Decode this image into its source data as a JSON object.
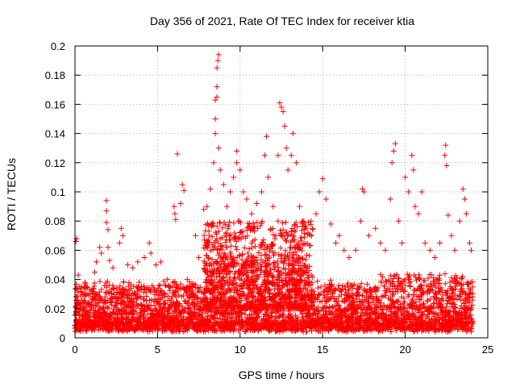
{
  "chart_data": {
    "type": "scatter",
    "title": "Day 356 of 2021, Rate Of TEC Index for receiver ktia",
    "xlabel": "GPS time / hours",
    "ylabel": "ROTI / TECUs",
    "xlim": [
      0,
      25
    ],
    "ylim": [
      0,
      0.2
    ],
    "x_ticks": [
      0,
      5,
      10,
      15,
      20,
      25
    ],
    "x_tick_labels": [
      "0",
      "5",
      "10",
      "15",
      "20",
      "25"
    ],
    "y_ticks": [
      0,
      0.02,
      0.04,
      0.06,
      0.08,
      0.1,
      0.12,
      0.14,
      0.16,
      0.18,
      0.2
    ],
    "y_tick_labels": [
      "0",
      "0.02",
      "0.04",
      "0.06",
      "0.08",
      "0.1",
      "0.12",
      "0.14",
      "0.16",
      "0.18",
      "0.2"
    ],
    "grid": true,
    "marker": "+",
    "marker_color": "#ff0000",
    "series": [
      {
        "name": "ROTI",
        "points": [
          [
            0.05,
            0.066
          ],
          [
            0.1,
            0.068
          ],
          [
            0.2,
            0.043
          ],
          [
            0.4,
            0.035
          ],
          [
            0.6,
            0.038
          ],
          [
            0.9,
            0.03
          ],
          [
            1.2,
            0.045
          ],
          [
            1.3,
            0.052
          ],
          [
            1.5,
            0.062
          ],
          [
            1.6,
            0.058
          ],
          [
            1.9,
            0.094
          ],
          [
            1.9,
            0.087
          ],
          [
            1.9,
            0.079
          ],
          [
            2.0,
            0.074
          ],
          [
            2.0,
            0.062
          ],
          [
            2.1,
            0.053
          ],
          [
            2.3,
            0.048
          ],
          [
            2.7,
            0.065
          ],
          [
            2.8,
            0.075
          ],
          [
            2.9,
            0.07
          ],
          [
            3.2,
            0.05
          ],
          [
            3.5,
            0.048
          ],
          [
            3.8,
            0.052
          ],
          [
            4.2,
            0.055
          ],
          [
            4.5,
            0.065
          ],
          [
            4.6,
            0.058
          ],
          [
            4.9,
            0.05
          ],
          [
            5.2,
            0.052
          ],
          [
            5.6,
            0.04
          ],
          [
            5.8,
            0.035
          ],
          [
            6.0,
            0.09
          ],
          [
            6.05,
            0.085
          ],
          [
            6.1,
            0.081
          ],
          [
            6.2,
            0.126
          ],
          [
            6.4,
            0.092
          ],
          [
            6.5,
            0.105
          ],
          [
            6.6,
            0.101
          ],
          [
            6.8,
            0.04
          ],
          [
            7.3,
            0.07
          ],
          [
            7.5,
            0.055
          ],
          [
            7.8,
            0.088
          ],
          [
            8.0,
            0.09
          ],
          [
            8.2,
            0.102
          ],
          [
            8.4,
            0.12
          ],
          [
            8.5,
            0.15
          ],
          [
            8.5,
            0.163
          ],
          [
            8.6,
            0.172
          ],
          [
            8.6,
            0.185
          ],
          [
            8.65,
            0.19
          ],
          [
            8.7,
            0.194
          ],
          [
            8.6,
            0.165
          ],
          [
            8.5,
            0.14
          ],
          [
            8.7,
            0.13
          ],
          [
            8.8,
            0.115
          ],
          [
            9.0,
            0.105
          ],
          [
            9.2,
            0.09
          ],
          [
            9.4,
            0.1
          ],
          [
            9.6,
            0.11
          ],
          [
            9.8,
            0.128
          ],
          [
            9.8,
            0.12
          ],
          [
            10.0,
            0.115
          ],
          [
            10.2,
            0.1
          ],
          [
            10.4,
            0.095
          ],
          [
            10.7,
            0.085
          ],
          [
            11.0,
            0.092
          ],
          [
            11.3,
            0.1
          ],
          [
            11.5,
            0.125
          ],
          [
            11.6,
            0.138
          ],
          [
            11.7,
            0.11
          ],
          [
            12.0,
            0.09
          ],
          [
            12.3,
            0.125
          ],
          [
            12.4,
            0.161
          ],
          [
            12.5,
            0.158
          ],
          [
            12.6,
            0.155
          ],
          [
            12.7,
            0.145
          ],
          [
            12.8,
            0.13
          ],
          [
            12.9,
            0.115
          ],
          [
            13.1,
            0.125
          ],
          [
            13.2,
            0.14
          ],
          [
            13.4,
            0.12
          ],
          [
            13.6,
            0.09
          ],
          [
            13.8,
            0.08
          ],
          [
            14.0,
            0.075
          ],
          [
            14.3,
            0.08
          ],
          [
            14.6,
            0.085
          ],
          [
            14.8,
            0.1
          ],
          [
            15.0,
            0.109
          ],
          [
            15.2,
            0.095
          ],
          [
            15.5,
            0.078
          ],
          [
            15.8,
            0.065
          ],
          [
            16.0,
            0.07
          ],
          [
            16.3,
            0.06
          ],
          [
            16.6,
            0.055
          ],
          [
            17.0,
            0.06
          ],
          [
            17.3,
            0.08
          ],
          [
            17.4,
            0.102
          ],
          [
            17.5,
            0.1
          ],
          [
            17.8,
            0.07
          ],
          [
            18.2,
            0.075
          ],
          [
            18.5,
            0.065
          ],
          [
            18.8,
            0.06
          ],
          [
            19.1,
            0.095
          ],
          [
            19.2,
            0.12
          ],
          [
            19.3,
            0.128
          ],
          [
            19.4,
            0.133
          ],
          [
            19.6,
            0.08
          ],
          [
            19.8,
            0.065
          ],
          [
            20.0,
            0.11
          ],
          [
            20.2,
            0.1
          ],
          [
            20.4,
            0.125
          ],
          [
            20.5,
            0.115
          ],
          [
            20.6,
            0.09
          ],
          [
            20.8,
            0.085
          ],
          [
            21.0,
            0.1
          ],
          [
            21.2,
            0.065
          ],
          [
            21.5,
            0.06
          ],
          [
            21.8,
            0.055
          ],
          [
            22.1,
            0.065
          ],
          [
            22.4,
            0.125
          ],
          [
            22.45,
            0.132
          ],
          [
            22.5,
            0.118
          ],
          [
            22.6,
            0.084
          ],
          [
            22.8,
            0.07
          ],
          [
            23.0,
            0.06
          ],
          [
            23.3,
            0.08
          ],
          [
            23.5,
            0.102
          ],
          [
            23.6,
            0.095
          ],
          [
            23.7,
            0.085
          ],
          [
            23.9,
            0.065
          ],
          [
            24.0,
            0.06
          ]
        ]
      }
    ]
  }
}
